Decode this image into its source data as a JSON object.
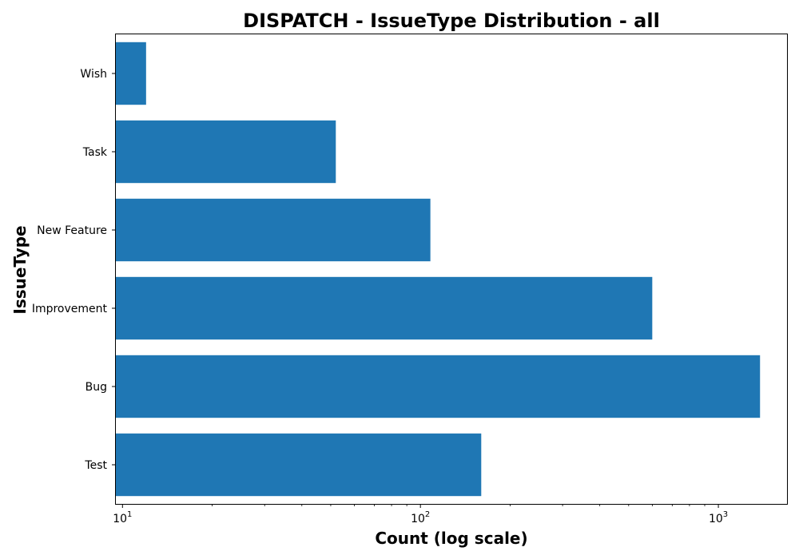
{
  "chart_data": {
    "type": "bar",
    "orientation": "horizontal",
    "title": "DISPATCH - IssueType Distribution - all",
    "xlabel": "Count (log scale)",
    "ylabel": "IssueType",
    "x_scale": "log",
    "xlim": [
      9.5,
      1700
    ],
    "x_ticks": [
      {
        "base": "10",
        "exp": "1",
        "value": 10
      },
      {
        "base": "10",
        "exp": "2",
        "value": 100
      },
      {
        "base": "10",
        "exp": "3",
        "value": 1000
      }
    ],
    "categories": [
      "Test",
      "Bug",
      "Improvement",
      "New Feature",
      "Task",
      "Wish"
    ],
    "values": [
      160,
      1380,
      600,
      108,
      52,
      12
    ],
    "bar_color": "#1f77b4",
    "grid": false,
    "legend": "none"
  }
}
